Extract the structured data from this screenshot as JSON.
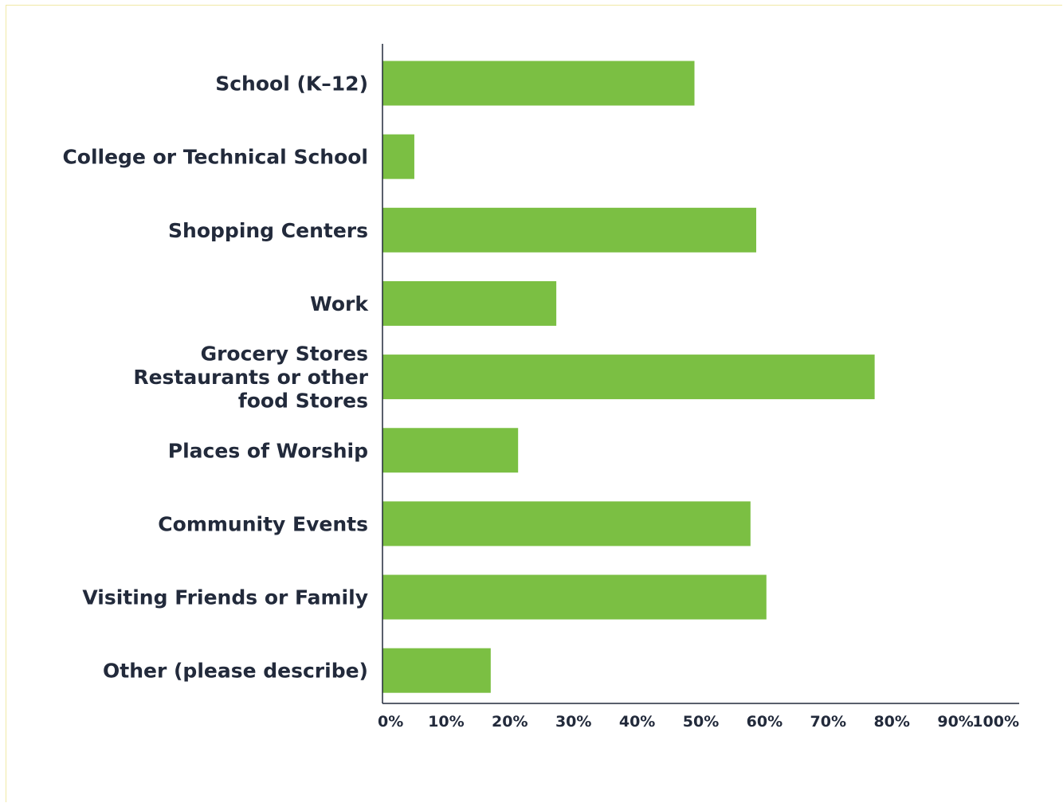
{
  "chart_data": {
    "type": "bar",
    "orientation": "horizontal",
    "categories": [
      [
        "School (K–12)"
      ],
      [
        "College or Technical School"
      ],
      [
        "Shopping Centers"
      ],
      [
        "Work"
      ],
      [
        "Grocery Stores",
        "Restaurants or other",
        "food Stores"
      ],
      [
        "Places of Worship"
      ],
      [
        "Community Events"
      ],
      [
        "Visiting Friends or Family"
      ],
      [
        "Other (please describe)"
      ]
    ],
    "values": [
      49,
      5,
      58.7,
      27.3,
      77.3,
      21.3,
      57.8,
      60.3,
      17
    ],
    "xlim": [
      0,
      100
    ],
    "xticks": [
      "0%",
      "10%",
      "20%",
      "30%",
      "40%",
      "50%",
      "60%",
      "70%",
      "80%",
      "90%",
      "100%"
    ],
    "title": "",
    "xlabel": "",
    "ylabel": "",
    "grid": false,
    "legend": "none",
    "colors": {
      "bar": "#7bbf43",
      "axis": "#222a3b",
      "text": "#222a3b",
      "frame": "#f1e9a6"
    }
  }
}
